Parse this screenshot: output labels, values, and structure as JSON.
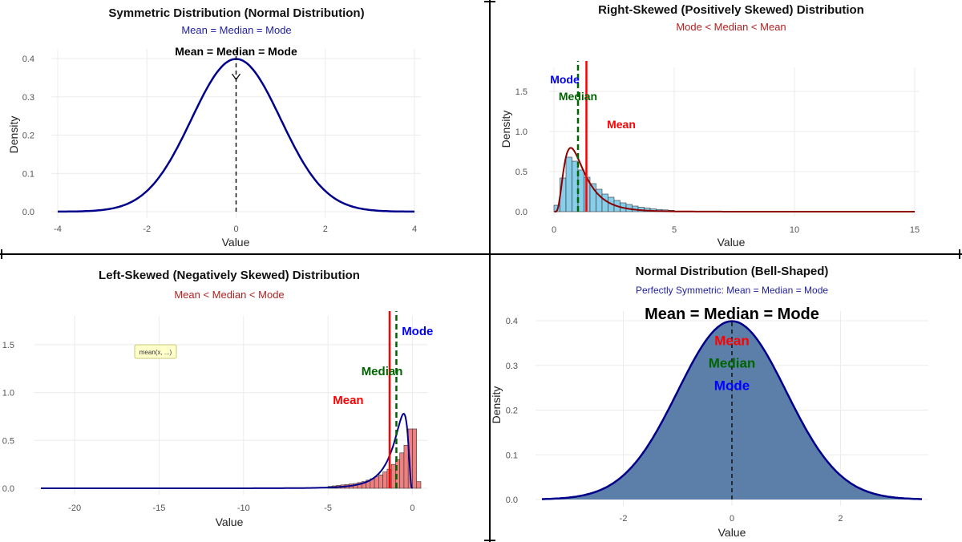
{
  "chart_data": [
    {
      "id": "symmetric",
      "type": "line",
      "title": "Symmetric Distribution (Normal Distribution)",
      "subtitle": "Mean = Median = Mode",
      "xlabel": "Value",
      "ylabel": "Density",
      "xlim": [
        -4,
        4
      ],
      "ylim": [
        0,
        0.4
      ],
      "x_ticks": [
        -4,
        -2,
        0,
        2,
        4
      ],
      "y_ticks": [
        0.0,
        0.1,
        0.2,
        0.3,
        0.4
      ],
      "y_tick_labels": [
        "0.0",
        "0.1",
        "0.2",
        "0.3",
        "0.4"
      ],
      "curve": {
        "kind": "normal",
        "mu": 0,
        "sd": 1,
        "color": "#00008b"
      },
      "vline": {
        "x": 0,
        "color": "#111111",
        "style": "dashed"
      },
      "annotation": {
        "text": "Mean = Median = Mode",
        "x": 0,
        "y": 0.4
      },
      "grid": true
    },
    {
      "id": "right_skew",
      "type": "bar",
      "title": "Right-Skewed (Positively Skewed) Distribution",
      "subtitle": "Mode < Median < Mean",
      "xlabel": "Value",
      "ylabel": "Density",
      "xlim": [
        0,
        15
      ],
      "ylim": [
        0,
        1.7
      ],
      "x_ticks": [
        0,
        5,
        10,
        15
      ],
      "y_ticks": [
        0.0,
        0.5,
        1.0,
        1.5
      ],
      "y_tick_labels": [
        "0.0",
        "0.5",
        "1.0",
        "1.5"
      ],
      "histogram": {
        "bin_width": 0.25,
        "start": 0,
        "densities": [
          0.08,
          0.42,
          0.68,
          0.63,
          0.52,
          0.43,
          0.35,
          0.28,
          0.22,
          0.18,
          0.14,
          0.11,
          0.09,
          0.07,
          0.055,
          0.045,
          0.035,
          0.028,
          0.022,
          0.017
        ],
        "fill": "#87ceeb"
      },
      "curve": {
        "kind": "lognormal",
        "mu": 0,
        "sigma": 0.6,
        "color": "#8b0000"
      },
      "vlines": [
        {
          "name": "Mode",
          "x": 0.7,
          "color": "#0000ff",
          "style": "none"
        },
        {
          "name": "Median",
          "x": 1.0,
          "color": "#006400",
          "style": "dashed"
        },
        {
          "name": "Mean",
          "x": 1.35,
          "color": "#ff0000",
          "style": "solid"
        }
      ],
      "labels": [
        {
          "text": "Mode",
          "x": 0.45,
          "y": 1.6,
          "color": "#0000ff"
        },
        {
          "text": "Median",
          "x": 1.0,
          "y": 1.39,
          "color": "#006400"
        },
        {
          "text": "Mean",
          "x": 2.8,
          "y": 1.04,
          "color": "#ff0000"
        }
      ],
      "grid": true
    },
    {
      "id": "left_skew",
      "type": "bar",
      "title": "Left-Skewed (Negatively Skewed) Distribution",
      "subtitle": "Mean < Median < Mode",
      "xlabel": "Value",
      "ylabel": "",
      "xlim": [
        -22,
        0.5
      ],
      "ylim": [
        0,
        1.7
      ],
      "x_ticks": [
        -20,
        -15,
        -10,
        -5,
        0
      ],
      "y_ticks": [
        0.0,
        0.5,
        1.0,
        1.5
      ],
      "y_tick_labels": [
        "0.0",
        "0.5",
        "1.0",
        "1.5"
      ],
      "histogram": {
        "bin_width": 0.25,
        "start": -5,
        "densities": [
          0.02,
          0.025,
          0.03,
          0.035,
          0.04,
          0.045,
          0.05,
          0.06,
          0.07,
          0.085,
          0.1,
          0.12,
          0.14,
          0.17,
          0.2,
          0.25,
          0.3,
          0.37,
          0.45,
          0.62,
          0.62,
          0.07
        ],
        "fill": "#f08080"
      },
      "curve": {
        "kind": "neg-lognormal",
        "mu": -0.1,
        "sigma": 0.75,
        "color": "#00008b"
      },
      "vlines": [
        {
          "name": "Mean",
          "x": -1.35,
          "color": "#ff0000",
          "style": "solid"
        },
        {
          "name": "Median",
          "x": -0.95,
          "color": "#006400",
          "style": "dashed"
        },
        {
          "name": "Mode",
          "x": -0.6,
          "color": "#0000ff",
          "style": "none"
        }
      ],
      "labels": [
        {
          "text": "Mean",
          "x": -3.8,
          "y": 0.88,
          "color": "#ff0000"
        },
        {
          "text": "Median",
          "x": -1.8,
          "y": 1.18,
          "color": "#006400"
        },
        {
          "text": "Mode",
          "x": 0.3,
          "y": 1.6,
          "color": "#0000ff"
        }
      ],
      "tooltip": "mean(x, ...)",
      "grid": true
    },
    {
      "id": "bell",
      "type": "area",
      "title": "Normal Distribution (Bell-Shaped)",
      "subtitle": "Perfectly Symmetric: Mean = Median = Mode",
      "xlabel": "Value",
      "ylabel": "Density",
      "xlim": [
        -3.5,
        3.5
      ],
      "ylim": [
        0,
        0.4
      ],
      "x_ticks": [
        -2,
        0,
        2
      ],
      "y_ticks": [
        0.0,
        0.1,
        0.2,
        0.3,
        0.4
      ],
      "y_tick_labels": [
        "0.0",
        "0.1",
        "0.2",
        "0.3",
        "0.4"
      ],
      "curve": {
        "kind": "normal",
        "mu": 0,
        "sd": 1,
        "color": "#00008b",
        "fill": "#5b7fa8"
      },
      "vline": {
        "x": 0,
        "color": "#111111",
        "style": "dashed"
      },
      "big_annotation": "Mean = Median = Mode",
      "labels": [
        {
          "text": "Mean",
          "x": 0,
          "y": 0.345,
          "color": "#ff0000"
        },
        {
          "text": "Median",
          "x": 0,
          "y": 0.295,
          "color": "#006400"
        },
        {
          "text": "Mode",
          "x": 0,
          "y": 0.245,
          "color": "#0000ff"
        }
      ],
      "grid": true
    }
  ]
}
